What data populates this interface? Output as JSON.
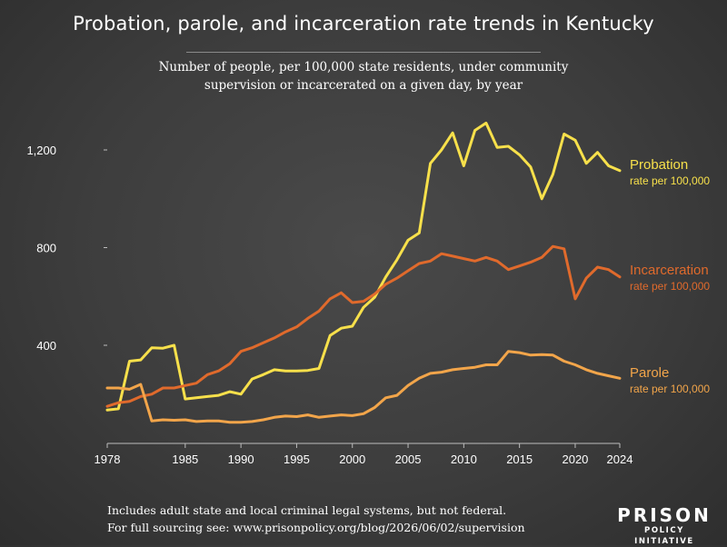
{
  "title": "Probation, parole, and incarceration rate trends in Kentucky",
  "subtitle_line1": "Number of people, per 100,000 state residents, under community",
  "subtitle_line2": "supervision or incarcerated on a given day, by year",
  "footer_line1": "Includes adult state and local criminal legal systems, but not federal.",
  "footer_line2": "For full sourcing see: www.prisonpolicy.org/blog/2026/06/02/supervision",
  "logo": {
    "main": "PRISON",
    "sub": "POLICY INITIATIVE"
  },
  "colors": {
    "probation": "#f7e04b",
    "incarceration": "#e06a2c",
    "parole": "#f2a54a",
    "background": "#3f3f3f",
    "text": "#ffffff"
  },
  "chart_data": {
    "type": "line",
    "x_ticks": [
      1978,
      1985,
      1990,
      1995,
      2000,
      2005,
      2010,
      2015,
      2020,
      2024
    ],
    "y_ticks": [
      "400",
      "800",
      "1,200"
    ],
    "y_tick_values": [
      400,
      800,
      1200
    ],
    "xlim": [
      1978,
      2024
    ],
    "ylim": [
      0,
      1400
    ],
    "grid": false,
    "x": [
      1978,
      1979,
      1980,
      1981,
      1982,
      1983,
      1984,
      1985,
      1986,
      1987,
      1988,
      1989,
      1990,
      1991,
      1992,
      1993,
      1994,
      1995,
      1996,
      1997,
      1998,
      1999,
      2000,
      2001,
      2002,
      2003,
      2004,
      2005,
      2006,
      2007,
      2008,
      2009,
      2010,
      2011,
      2012,
      2013,
      2014,
      2015,
      2016,
      2017,
      2018,
      2019,
      2020,
      2021,
      2022,
      2023,
      2024
    ],
    "series": [
      {
        "name": "Probation",
        "label": "Probation",
        "sublabel": "rate per 100,000",
        "color": "#f7e04b",
        "values": [
          135,
          140,
          335,
          340,
          390,
          388,
          400,
          180,
          185,
          190,
          195,
          210,
          200,
          262,
          280,
          300,
          295,
          295,
          297,
          305,
          440,
          470,
          478,
          555,
          597,
          680,
          750,
          830,
          860,
          1145,
          1200,
          1270,
          1135,
          1280,
          1310,
          1210,
          1215,
          1180,
          1130,
          1000,
          1100,
          1265,
          1240,
          1145,
          1190,
          1135,
          1115
        ]
      },
      {
        "name": "Incarceration",
        "label": "Incarceration",
        "sublabel": "rate per 100,000",
        "color": "#e06a2c",
        "values": [
          150,
          165,
          170,
          190,
          200,
          225,
          225,
          235,
          245,
          280,
          295,
          325,
          375,
          390,
          410,
          430,
          455,
          475,
          510,
          540,
          590,
          615,
          575,
          580,
          610,
          650,
          675,
          705,
          735,
          745,
          775,
          765,
          755,
          745,
          760,
          745,
          710,
          725,
          740,
          760,
          805,
          795,
          590,
          675,
          720,
          710,
          680
        ]
      },
      {
        "name": "Parole",
        "label": "Parole",
        "sublabel": "rate per 100,000",
        "color": "#f2a54a",
        "values": [
          225,
          225,
          220,
          240,
          90,
          95,
          93,
          95,
          88,
          90,
          90,
          85,
          85,
          88,
          95,
          105,
          110,
          108,
          115,
          105,
          110,
          115,
          112,
          120,
          145,
          185,
          195,
          235,
          265,
          285,
          290,
          300,
          305,
          310,
          320,
          320,
          375,
          370,
          360,
          362,
          360,
          335,
          320,
          300,
          285,
          275,
          265
        ]
      }
    ]
  }
}
